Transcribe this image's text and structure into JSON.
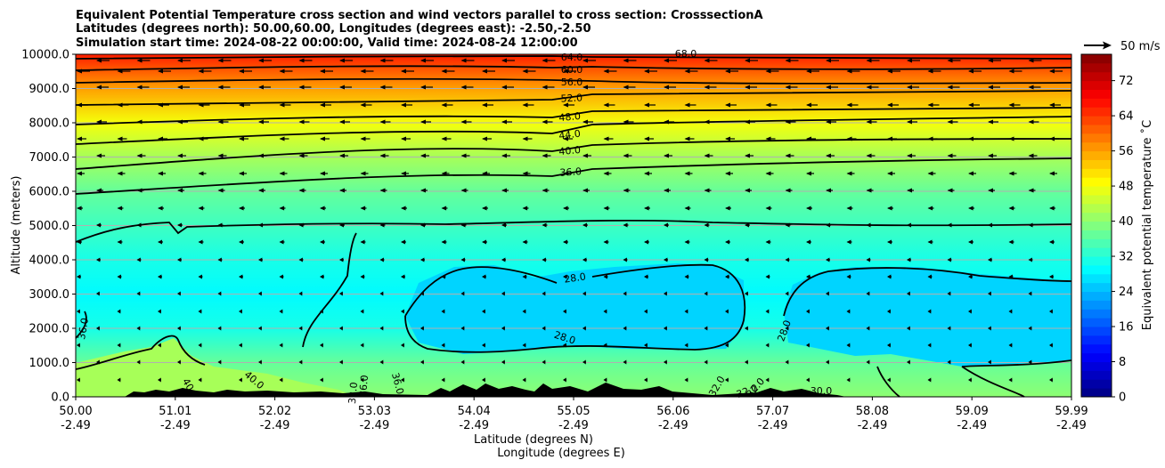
{
  "chart_data": {
    "type": "heatmap",
    "title_lines": [
      "Equivalent Potential Temperature cross section and wind vectors parallel to cross section: CrosssectionA",
      "Latitudes (degrees north): 50.00,60.00, Longitudes (degrees east): -2.50,-2.50",
      "Simulation start time: 2024-08-22 00:00:00, Valid time: 2024-08-24 12:00:00"
    ],
    "ylabel": "Altitude (meters)",
    "xlabel_lat": "Latitude (degrees N)",
    "xlabel_lon": "Longitude (degrees E)",
    "y_ticks": [
      "0.0",
      "1000.0",
      "2000.0",
      "3000.0",
      "4000.0",
      "5000.0",
      "6000.0",
      "7000.0",
      "8000.0",
      "9000.0",
      "10000.0"
    ],
    "ylim": [
      0,
      10000
    ],
    "x_ticks_lat": [
      "50.00",
      "51.01",
      "52.02",
      "53.03",
      "54.04",
      "55.05",
      "56.06",
      "57.07",
      "58.08",
      "59.09",
      "59.99"
    ],
    "x_ticks_lon": [
      "-2.49",
      "-2.49",
      "-2.49",
      "-2.49",
      "-2.49",
      "-2.49",
      "-2.49",
      "-2.49",
      "-2.49",
      "-2.49",
      "-2.49"
    ],
    "xlim": [
      50.0,
      59.99
    ],
    "colorbar": {
      "label": "Equivalent potential temperature ˚C",
      "ticks": [
        "0",
        "8",
        "16",
        "24",
        "32",
        "40",
        "48",
        "56",
        "64",
        "72"
      ],
      "range": [
        0,
        78
      ],
      "colormap": "jet"
    },
    "wind_key": {
      "label": "50 m/s",
      "value_ms": 50
    },
    "contour_levels": [
      28,
      32,
      36,
      40,
      44,
      48,
      52,
      56,
      60,
      64
    ],
    "contour_labels": [
      "64.0",
      "60.0",
      "56.0",
      "52.0",
      "48.0",
      "44.0",
      "40.0",
      "36.0",
      "28.0",
      "28.0",
      "28.0",
      "36.0",
      "32.0",
      "32.0",
      "32.0",
      "36.0",
      "40",
      "40.0",
      "32.0",
      "36.0",
      "68.0",
      "30.0"
    ],
    "theta_e_profile": [
      {
        "altitude": 0,
        "value": 40
      },
      {
        "altitude": 1000,
        "value": 37
      },
      {
        "altitude": 2000,
        "value": 31
      },
      {
        "altitude": 3000,
        "value": 29
      },
      {
        "altitude": 4000,
        "value": 31
      },
      {
        "altitude": 5000,
        "value": 34
      },
      {
        "altitude": 6000,
        "value": 37
      },
      {
        "altitude": 7000,
        "value": 42
      },
      {
        "altitude": 8000,
        "value": 48
      },
      {
        "altitude": 9000,
        "value": 56
      },
      {
        "altitude": 10000,
        "value": 66
      }
    ],
    "cold_pool_center_value": 26,
    "wind_direction": "southward",
    "grid": "horizontal"
  }
}
